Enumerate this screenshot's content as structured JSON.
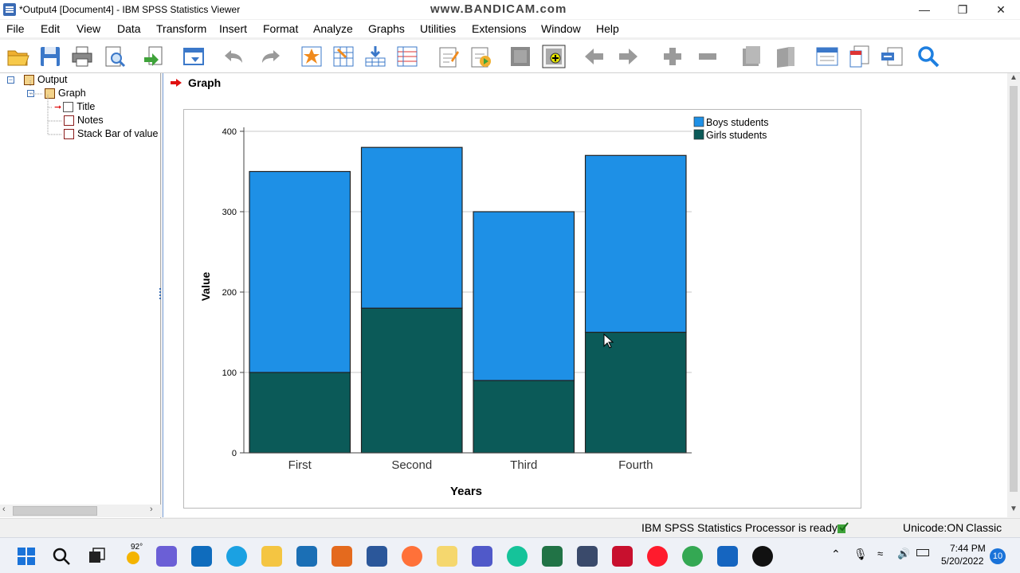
{
  "window": {
    "title": "*Output4 [Document4] - IBM SPSS Statistics Viewer",
    "watermark": "www.BANDICAM.com"
  },
  "menu": [
    "File",
    "Edit",
    "View",
    "Data",
    "Transform",
    "Insert",
    "Format",
    "Analyze",
    "Graphs",
    "Utilities",
    "Extensions",
    "Window",
    "Help"
  ],
  "toolbar_icons": [
    "open-icon",
    "save-icon",
    "print-icon",
    "print-preview-icon",
    "export-icon",
    "recall-dialog-icon",
    "undo-icon",
    "redo-icon",
    "goto-data-icon",
    "goto-case-icon",
    "goto-variable-icon",
    "variables-icon",
    "designate-window-icon",
    "run-script-icon",
    "select-last-output-icon",
    "insert-output-icon",
    "previous-arrow-icon",
    "next-arrow-icon",
    "expand-icon",
    "collapse-icon",
    "show-icon",
    "hide-icon",
    "insert-heading-icon",
    "insert-title-icon",
    "insert-text-icon",
    "find-icon"
  ],
  "tree": {
    "root": "Output",
    "graph": "Graph",
    "items": [
      "Title",
      "Notes",
      "Stack Bar of value"
    ]
  },
  "content": {
    "heading": "Graph"
  },
  "chart_data": {
    "type": "bar",
    "stacked": true,
    "categories": [
      "First",
      "Second",
      "Third",
      "Fourth"
    ],
    "series": [
      {
        "name": "Girls students",
        "values": [
          100,
          180,
          90,
          150
        ],
        "color": "#0b5a58"
      },
      {
        "name": "Boys students",
        "values": [
          250,
          200,
          210,
          220
        ],
        "color": "#1e90e6"
      }
    ],
    "legend": [
      "Boys students",
      "Girls students"
    ],
    "legend_colors": [
      "#1e90e6",
      "#0b5a58"
    ],
    "legend_position": "top-right",
    "xlabel": "Years",
    "ylabel": "Value",
    "ylim": [
      0,
      400
    ],
    "yticks": [
      "0",
      "100",
      "200",
      "300",
      "400"
    ],
    "grid": true
  },
  "status": {
    "processor": "IBM SPSS Statistics Processor is ready",
    "unicode": "Unicode:ON",
    "mode": "Classic"
  },
  "taskbar": {
    "weather": "92°",
    "time": "7:44 PM",
    "date": "5/20/2022",
    "notifications": "10"
  }
}
